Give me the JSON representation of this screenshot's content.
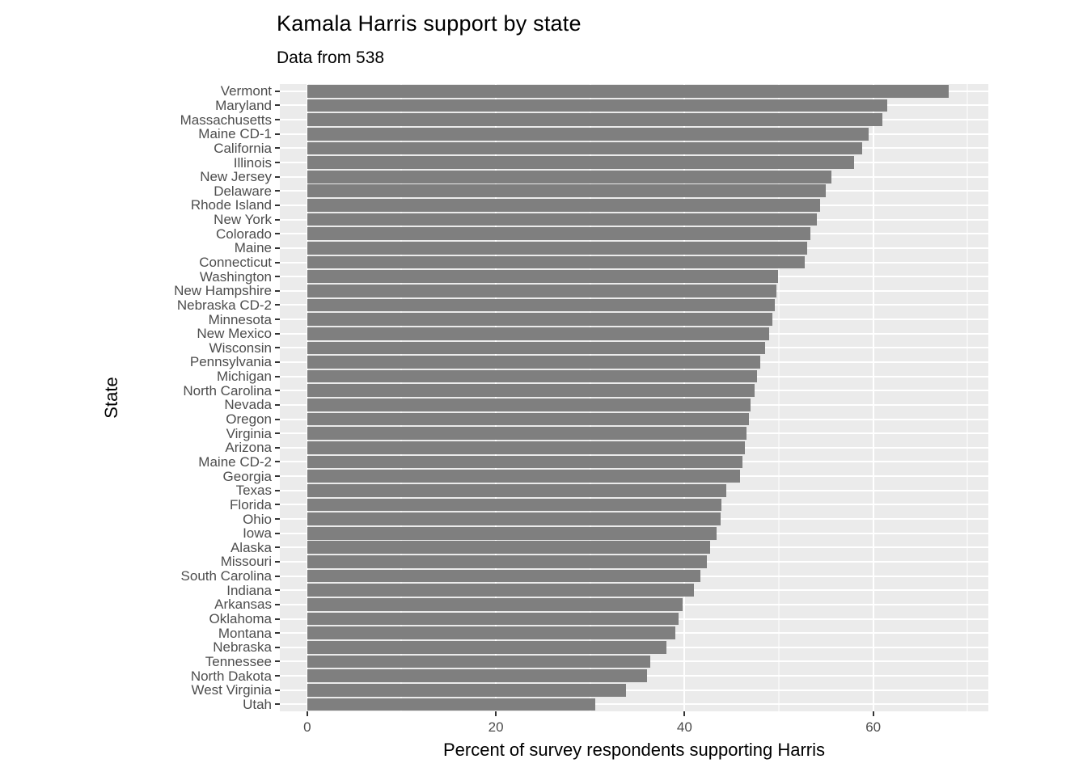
{
  "chart_data": {
    "type": "bar",
    "orientation": "horizontal",
    "title": "Kamala Harris support by state",
    "subtitle": "Data from 538",
    "xlabel": "Percent of survey respondents supporting Harris",
    "ylabel": "State",
    "categories": [
      "Vermont",
      "Maryland",
      "Massachusetts",
      "Maine CD-1",
      "California",
      "Illinois",
      "New Jersey",
      "Delaware",
      "Rhode Island",
      "New York",
      "Colorado",
      "Maine",
      "Connecticut",
      "Washington",
      "New Hampshire",
      "Nebraska CD-2",
      "Minnesota",
      "New Mexico",
      "Wisconsin",
      "Pennsylvania",
      "Michigan",
      "North Carolina",
      "Nevada",
      "Oregon",
      "Virginia",
      "Arizona",
      "Maine CD-2",
      "Georgia",
      "Texas",
      "Florida",
      "Ohio",
      "Iowa",
      "Alaska",
      "Missouri",
      "South Carolina",
      "Indiana",
      "Arkansas",
      "Oklahoma",
      "Montana",
      "Nebraska",
      "Tennessee",
      "North Dakota",
      "West Virginia",
      "Utah"
    ],
    "values": [
      68,
      61.5,
      61,
      59.5,
      58.8,
      58,
      55.6,
      55,
      54.4,
      54,
      53.3,
      53,
      52.7,
      49.9,
      49.7,
      49.6,
      49.3,
      49,
      48.5,
      48,
      47.7,
      47.4,
      47,
      46.8,
      46.6,
      46.4,
      46.1,
      45.9,
      44.4,
      43.9,
      43.8,
      43.4,
      42.7,
      42.4,
      41.7,
      41,
      39.8,
      39.4,
      39,
      38.1,
      36.4,
      36,
      33.8,
      30.5
    ],
    "axis": {
      "xmin": -2.9,
      "xmax": 72.2,
      "ticks": [
        0,
        20,
        40,
        60
      ],
      "minor_ticks": [
        10,
        30,
        50,
        70
      ]
    },
    "grid": true,
    "legend": "none",
    "colors": {
      "bar": "#7f7f7f",
      "panel_bg": "#ebebeb",
      "grid": "#ffffff",
      "axis_text": "#4d4d4d",
      "title_text": "#000000"
    }
  }
}
